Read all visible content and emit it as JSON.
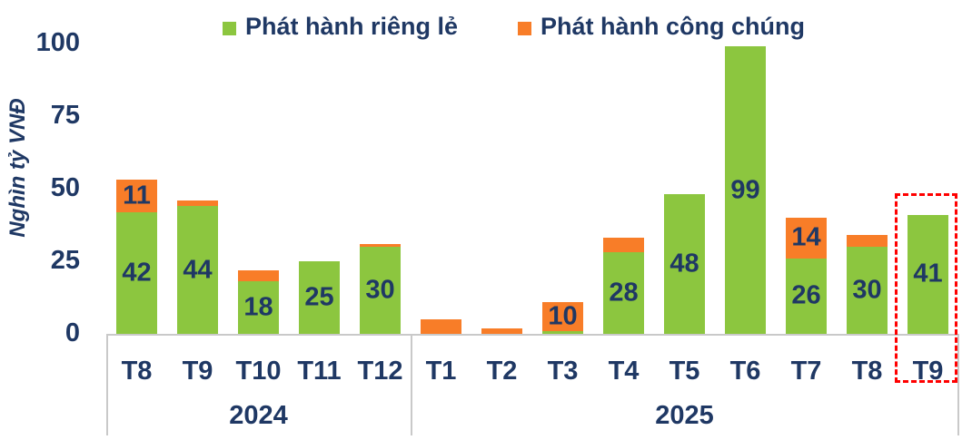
{
  "chart_data": {
    "type": "bar",
    "stacked": true,
    "title": "",
    "ylabel": "Nghìn tỷ VNĐ",
    "xlabel": "",
    "ylim": [
      0,
      100
    ],
    "yticks": [
      0,
      25,
      50,
      75,
      100
    ],
    "grid": false,
    "legend_position": "top",
    "categories": [
      "T8",
      "T9",
      "T10",
      "T11",
      "T12",
      "T1",
      "T2",
      "T3",
      "T4",
      "T5",
      "T6",
      "T7",
      "T8",
      "T9"
    ],
    "x_groups": [
      {
        "label": "2024",
        "months": [
          "T8",
          "T9",
          "T10",
          "T11",
          "T12"
        ]
      },
      {
        "label": "2025",
        "months": [
          "T1",
          "T2",
          "T3",
          "T4",
          "T5",
          "T6",
          "T7",
          "T8",
          "T9"
        ]
      }
    ],
    "series": [
      {
        "name": "Phát hành riêng lẻ",
        "color": "#8CC63F",
        "values": [
          42,
          44,
          18,
          25,
          30,
          0,
          0,
          1,
          28,
          48,
          99,
          26,
          30,
          41
        ],
        "data_labels": [
          "42",
          "44",
          "18",
          "25",
          "30",
          "",
          "",
          "",
          "28",
          "48",
          "99",
          "26",
          "30",
          "41"
        ]
      },
      {
        "name": "Phát hành công chúng",
        "color": "#F87D28",
        "values": [
          11,
          2,
          4,
          0,
          1,
          5,
          2,
          10,
          5,
          0,
          0,
          14,
          4,
          0
        ],
        "data_labels": [
          "11",
          "",
          "",
          "",
          "",
          "",
          "",
          "10",
          "",
          "",
          "",
          "14",
          "",
          ""
        ]
      }
    ],
    "highlight": {
      "category_index": 13,
      "category": "T9",
      "year": "2025",
      "style": "dashed-box",
      "color": "#FF0000"
    },
    "colors": {
      "text": "#1F3864",
      "axis_line": "#C9C9C9",
      "background": "#FFFFFF"
    }
  }
}
